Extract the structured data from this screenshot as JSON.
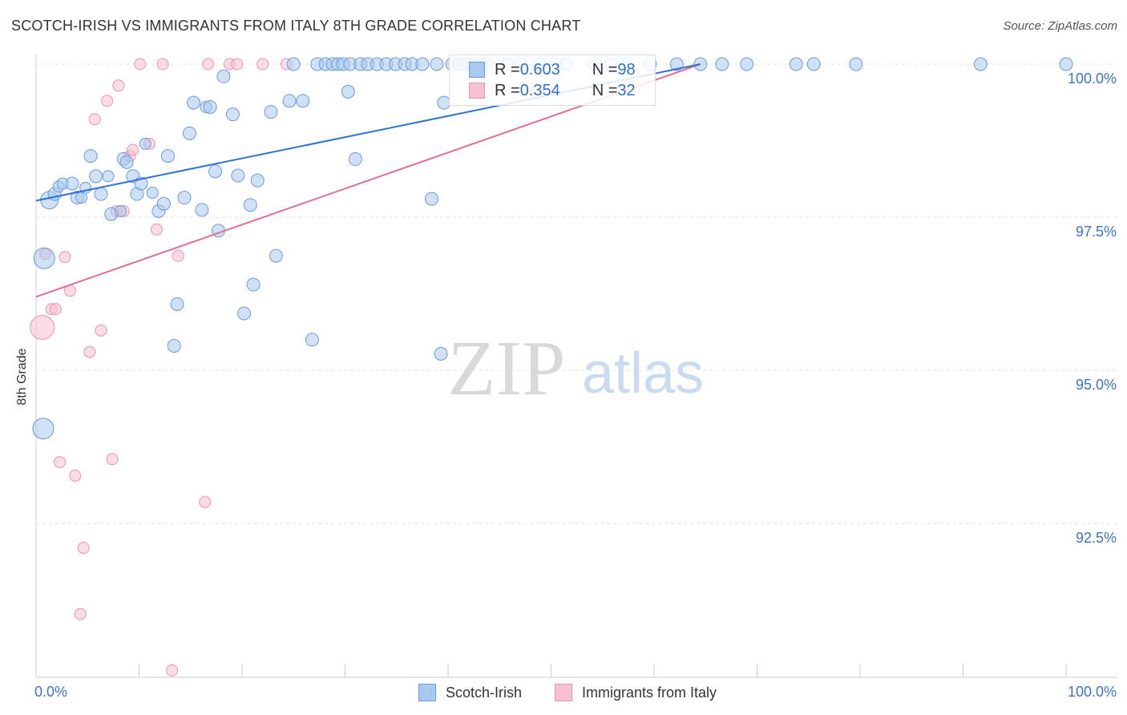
{
  "header": {
    "title": "SCOTCH-IRISH VS IMMIGRANTS FROM ITALY 8TH GRADE CORRELATION CHART",
    "source": "Source: ZipAtlas.com"
  },
  "watermark": {
    "zip": "ZIP",
    "atlas": "atlas"
  },
  "legend": {
    "series1": {
      "r_label": "R = ",
      "r_value": "0.603",
      "n_label": "N = ",
      "n_value": "98"
    },
    "series2": {
      "r_label": "R = ",
      "r_value": "0.354",
      "n_label": "N = ",
      "n_value": "32"
    }
  },
  "colors": {
    "blue_fill": "#a9c8ef",
    "blue_stroke": "#6a9bdc",
    "blue_line": "#2f72d6",
    "pink_fill": "#f7bfd0",
    "pink_stroke": "#e994b0",
    "pink_line": "#e36d96",
    "tick_text": "#3d74c9"
  },
  "chart_data": {
    "type": "scatter",
    "title": "SCOTCH-IRISH VS IMMIGRANTS FROM ITALY 8TH GRADE CORRELATION CHART",
    "xlabel": "",
    "ylabel": "8th Grade",
    "xlim": [
      0,
      100
    ],
    "ylim": [
      89.6,
      100.5
    ],
    "x_tick_labels": [
      "0.0%",
      "100.0%"
    ],
    "y_ticks": [
      92.5,
      95.0,
      97.5,
      100.0
    ],
    "y_tick_labels": [
      "92.5%",
      "95.0%",
      "97.5%",
      "100.0%"
    ],
    "series": [
      {
        "name": "Scotch-Irish",
        "color": "#6a9bdc",
        "r": 0.603,
        "n": 98,
        "trend": {
          "x": [
            0.0,
            64.5
          ],
          "y": [
            97.77,
            100.0
          ]
        },
        "points": [
          [
            1.3,
            97.78,
            22
          ],
          [
            1.8,
            97.88,
            16
          ],
          [
            2.2,
            98.0,
            14
          ],
          [
            2.6,
            98.05,
            14
          ],
          [
            3.5,
            98.05,
            16
          ],
          [
            4.0,
            97.82,
            16
          ],
          [
            4.4,
            97.82,
            14
          ],
          [
            4.8,
            97.98,
            14
          ],
          [
            5.3,
            98.5,
            16
          ],
          [
            5.8,
            98.17,
            16
          ],
          [
            6.3,
            97.88,
            16
          ],
          [
            7.0,
            98.17,
            14
          ],
          [
            7.3,
            97.55,
            16
          ],
          [
            8.2,
            97.6,
            14
          ],
          [
            8.5,
            98.45,
            16
          ],
          [
            8.8,
            98.4,
            16
          ],
          [
            9.4,
            98.17,
            16
          ],
          [
            9.8,
            97.88,
            16
          ],
          [
            10.2,
            98.05,
            16
          ],
          [
            10.6,
            98.7,
            14
          ],
          [
            11.3,
            97.9,
            14
          ],
          [
            11.9,
            97.6,
            16
          ],
          [
            12.4,
            97.72,
            16
          ],
          [
            12.8,
            98.5,
            16
          ],
          [
            13.7,
            96.08,
            16
          ],
          [
            13.4,
            95.4,
            16
          ],
          [
            14.4,
            97.82,
            16
          ],
          [
            14.9,
            98.87,
            16
          ],
          [
            15.3,
            99.37,
            16
          ],
          [
            16.1,
            97.62,
            16
          ],
          [
            16.5,
            99.3,
            14
          ],
          [
            16.9,
            99.3,
            16
          ],
          [
            17.4,
            98.25,
            16
          ],
          [
            17.7,
            97.28,
            16
          ],
          [
            18.2,
            99.8,
            16
          ],
          [
            19.1,
            99.18,
            16
          ],
          [
            19.6,
            98.18,
            16
          ],
          [
            20.8,
            97.7,
            16
          ],
          [
            21.1,
            96.4,
            16
          ],
          [
            20.2,
            95.93,
            16
          ],
          [
            21.5,
            98.1,
            16
          ],
          [
            22.8,
            99.22,
            16
          ],
          [
            23.3,
            96.87,
            16
          ],
          [
            25.0,
            100.0,
            16
          ],
          [
            24.6,
            99.4,
            16
          ],
          [
            25.9,
            99.4,
            16
          ],
          [
            26.8,
            95.5,
            16
          ],
          [
            27.3,
            100.0,
            16
          ],
          [
            28.1,
            100.0,
            16
          ],
          [
            28.8,
            100.0,
            16
          ],
          [
            29.3,
            100.0,
            16
          ],
          [
            29.8,
            100.0,
            16
          ],
          [
            30.5,
            100.0,
            16
          ],
          [
            31.0,
            98.45,
            16
          ],
          [
            31.5,
            100.0,
            16
          ],
          [
            30.3,
            99.55,
            16
          ],
          [
            32.2,
            100.0,
            16
          ],
          [
            33.1,
            100.0,
            16
          ],
          [
            34.0,
            100.0,
            16
          ],
          [
            34.9,
            100.0,
            16
          ],
          [
            35.8,
            100.0,
            16
          ],
          [
            36.5,
            100.0,
            16
          ],
          [
            37.5,
            100.0,
            16
          ],
          [
            38.4,
            97.8,
            16
          ],
          [
            38.9,
            100.0,
            16
          ],
          [
            39.3,
            95.27,
            16
          ],
          [
            39.6,
            99.37,
            16
          ],
          [
            40.4,
            100.0,
            16
          ],
          [
            41.1,
            100.0,
            16
          ],
          [
            41.6,
            100.0,
            16
          ],
          [
            42.1,
            100.0,
            16
          ],
          [
            42.6,
            100.0,
            16
          ],
          [
            43.2,
            100.0,
            16
          ],
          [
            43.7,
            100.0,
            16
          ],
          [
            45.8,
            100.0,
            16
          ],
          [
            47.1,
            100.0,
            16
          ],
          [
            48.9,
            100.0,
            16
          ],
          [
            50.4,
            100.0,
            16
          ],
          [
            51.5,
            100.0,
            16
          ],
          [
            54.2,
            100.0,
            16
          ],
          [
            55.8,
            100.0,
            16
          ],
          [
            57.2,
            100.0,
            16
          ],
          [
            59.6,
            100.0,
            16
          ],
          [
            62.2,
            100.0,
            16
          ],
          [
            64.5,
            100.0,
            16
          ],
          [
            66.6,
            100.0,
            16
          ],
          [
            69.0,
            100.0,
            16
          ],
          [
            73.8,
            100.0,
            16
          ],
          [
            75.5,
            100.0,
            16
          ],
          [
            79.6,
            100.0,
            16
          ],
          [
            91.7,
            100.0,
            16
          ],
          [
            100.0,
            100.0,
            16
          ],
          [
            0.8,
            96.83,
            26
          ],
          [
            0.7,
            94.05,
            26
          ]
        ]
      },
      {
        "name": "Immigrants from Italy",
        "color": "#e994b0",
        "r": 0.354,
        "n": 32,
        "trend": {
          "x": [
            0.0,
            64.5
          ],
          "y": [
            96.2,
            100.0
          ]
        },
        "points": [
          [
            0.6,
            95.7,
            30
          ],
          [
            0.9,
            96.9,
            14
          ],
          [
            1.5,
            96.0,
            14
          ],
          [
            1.9,
            96.0,
            14
          ],
          [
            2.3,
            93.5,
            14
          ],
          [
            2.8,
            96.85,
            14
          ],
          [
            3.3,
            96.3,
            14
          ],
          [
            3.8,
            93.28,
            14
          ],
          [
            4.3,
            91.02,
            14
          ],
          [
            4.6,
            92.1,
            14
          ],
          [
            5.2,
            95.3,
            14
          ],
          [
            5.7,
            99.1,
            14
          ],
          [
            6.3,
            95.65,
            14
          ],
          [
            6.9,
            99.4,
            14
          ],
          [
            7.4,
            93.55,
            14
          ],
          [
            7.8,
            97.6,
            14
          ],
          [
            8.0,
            99.65,
            14
          ],
          [
            8.5,
            97.6,
            14
          ],
          [
            9.1,
            98.5,
            14
          ],
          [
            9.4,
            98.6,
            14
          ],
          [
            10.1,
            100.0,
            14
          ],
          [
            11.0,
            98.7,
            14
          ],
          [
            11.7,
            97.3,
            14
          ],
          [
            12.3,
            100.0,
            14
          ],
          [
            13.2,
            90.1,
            14
          ],
          [
            13.8,
            96.87,
            14
          ],
          [
            16.4,
            92.85,
            14
          ],
          [
            16.7,
            100.0,
            14
          ],
          [
            18.8,
            100.0,
            14
          ],
          [
            19.5,
            100.0,
            14
          ],
          [
            22.0,
            100.0,
            14
          ],
          [
            24.3,
            100.0,
            14
          ]
        ]
      }
    ]
  }
}
